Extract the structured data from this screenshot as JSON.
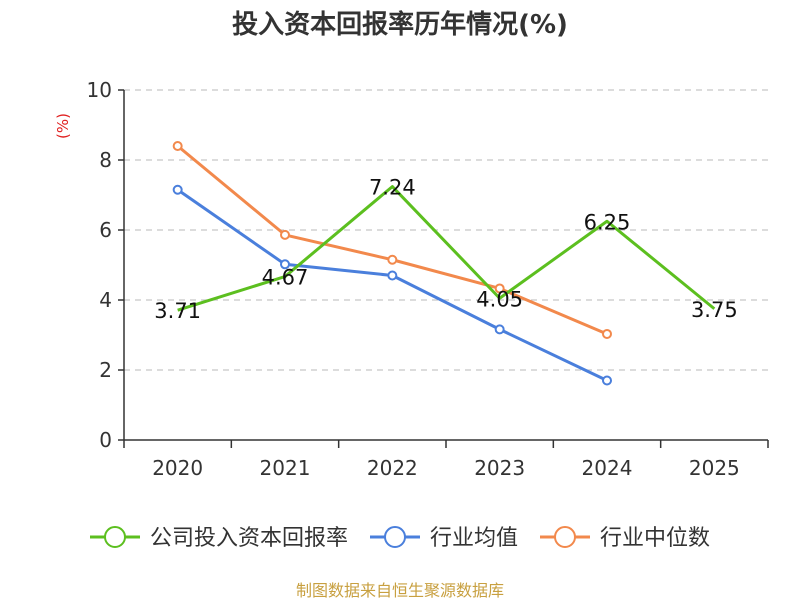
{
  "chart_data": {
    "type": "line",
    "title": "投入资本回报率历年情况(%)",
    "ylabel": "(%)",
    "xlabel": "",
    "categories": [
      "2020",
      "2021",
      "2022",
      "2023",
      "2024",
      "2025"
    ],
    "ylim": [
      0,
      10
    ],
    "yticks": [
      0,
      2,
      4,
      6,
      8,
      10
    ],
    "grid": true,
    "legend_position": "bottom",
    "series": [
      {
        "name": "公司投入资本回报率",
        "color": "#5cbf1f",
        "values": [
          3.71,
          4.67,
          7.24,
          4.05,
          6.25,
          3.75
        ],
        "labels": [
          "3.71",
          "4.67",
          "7.24",
          "4.05",
          "6.25",
          "3.75"
        ],
        "show_markers": false
      },
      {
        "name": "行业均值",
        "color": "#4a7fdc",
        "values": [
          7.15,
          5.02,
          4.7,
          3.16,
          1.7,
          null
        ],
        "show_markers": true
      },
      {
        "name": "行业中位数",
        "color": "#f2894c",
        "values": [
          8.4,
          5.86,
          5.15,
          4.33,
          3.03,
          null
        ],
        "show_markers": true
      }
    ],
    "source": "制图数据来自恒生聚源数据库"
  }
}
